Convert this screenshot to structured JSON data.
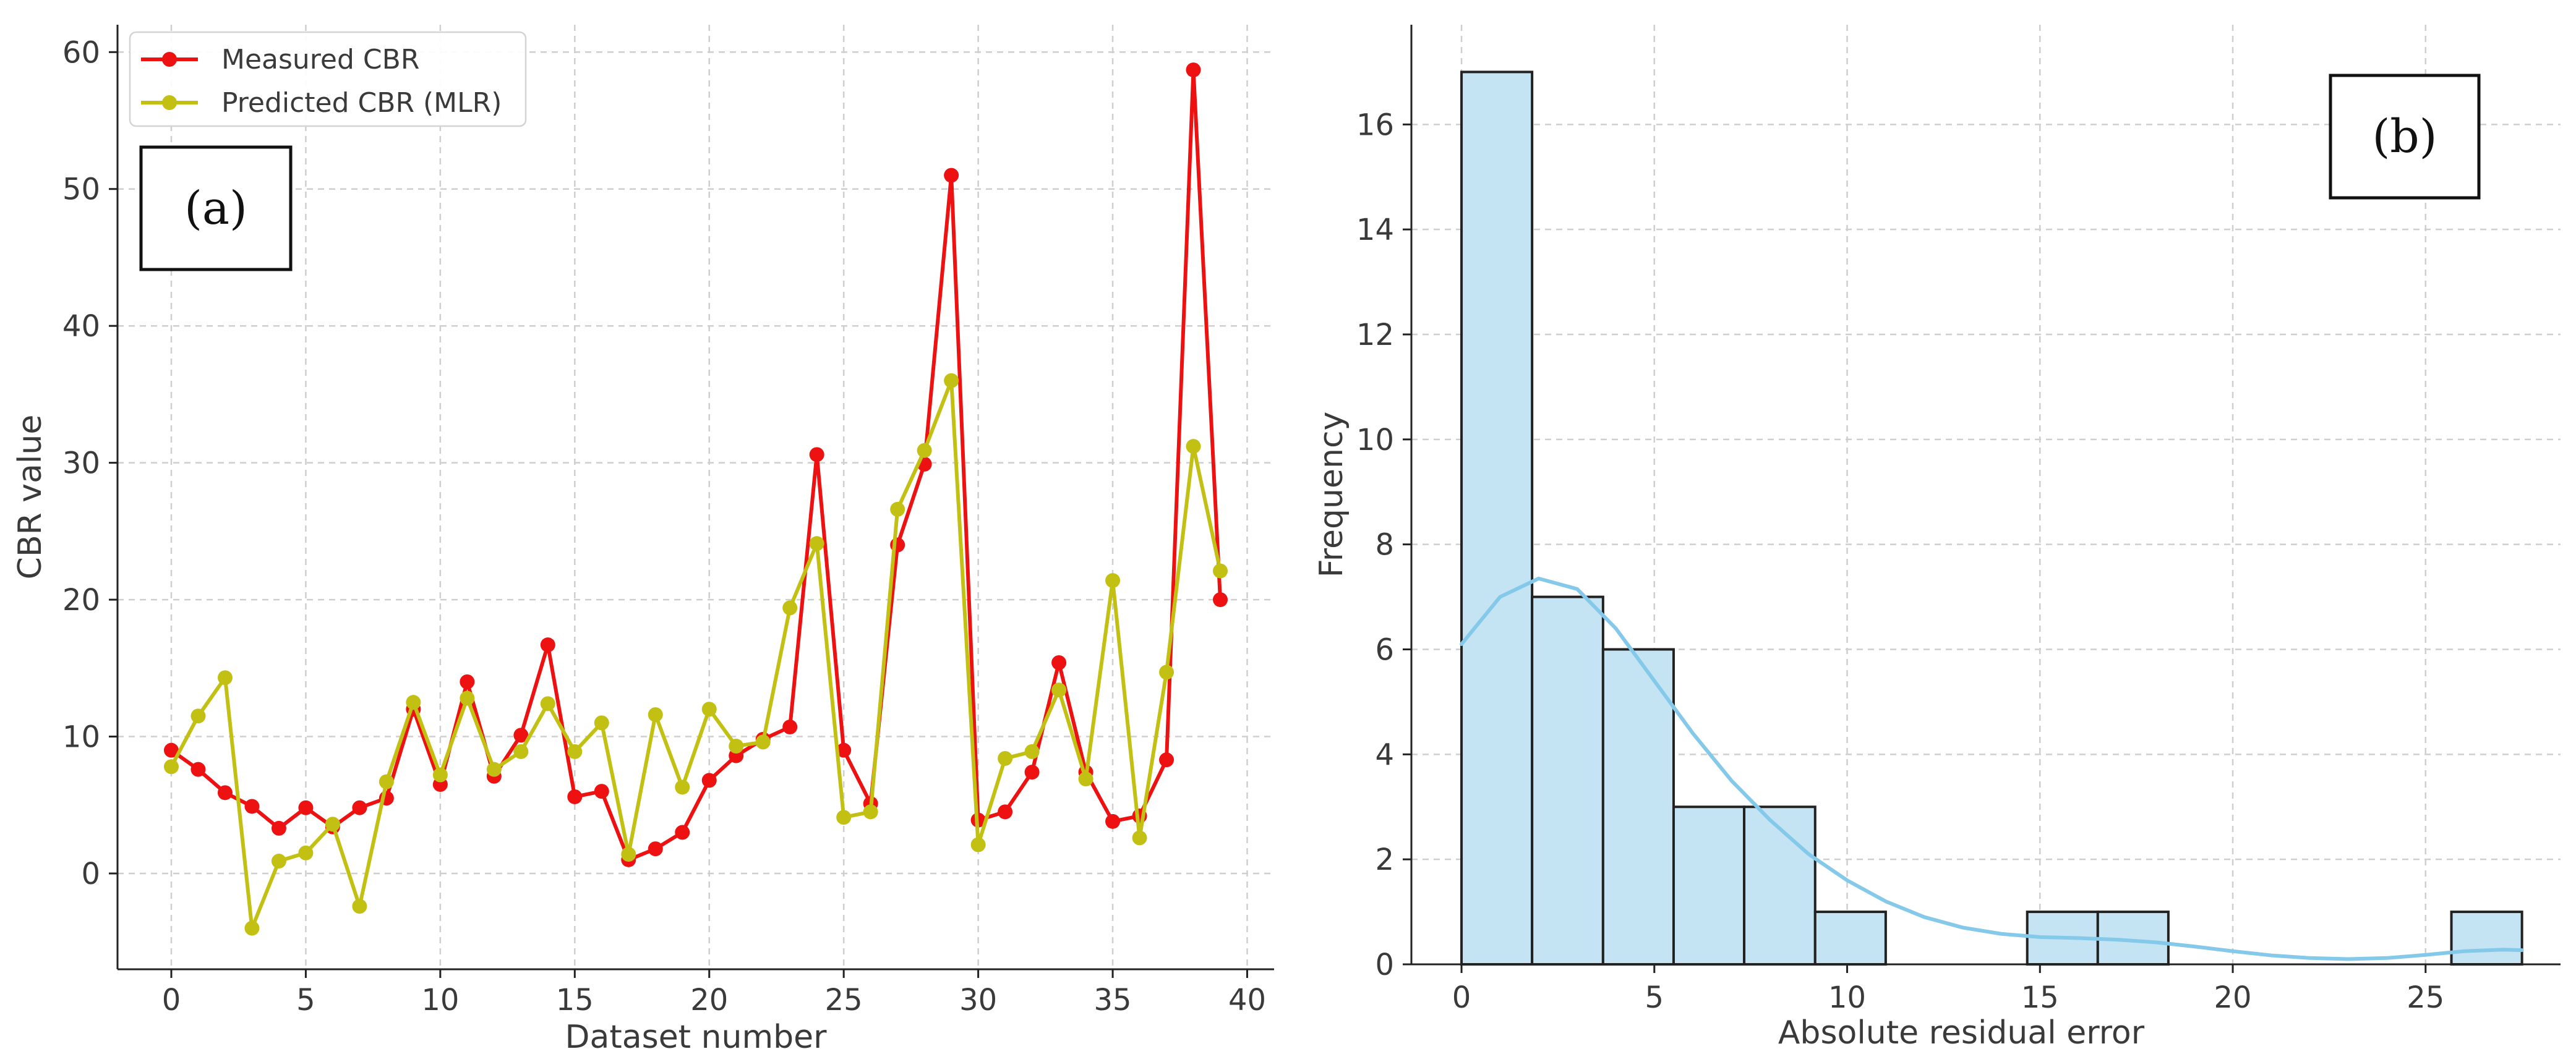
{
  "chart_data": [
    {
      "panel": "(a)",
      "type": "line",
      "xlabel": "Dataset number",
      "ylabel": "CBR value",
      "xlim": [
        -2,
        41
      ],
      "ylim": [
        -7,
        62
      ],
      "xticks": [
        "0",
        "5",
        "10",
        "15",
        "20",
        "25",
        "30",
        "35",
        "40"
      ],
      "yticks": [
        "0",
        "10",
        "20",
        "30",
        "40",
        "50",
        "60"
      ],
      "grid": true,
      "legend_position": "top-left",
      "x": [
        0,
        1,
        2,
        3,
        4,
        5,
        6,
        7,
        8,
        9,
        10,
        11,
        12,
        13,
        14,
        15,
        16,
        17,
        18,
        19,
        20,
        21,
        22,
        23,
        24,
        25,
        26,
        27,
        28,
        29,
        30,
        31,
        32,
        33,
        34,
        35,
        36,
        37,
        38,
        39
      ],
      "series": [
        {
          "name": "Measured CBR",
          "color": "#ee1111",
          "values": [
            9.0,
            7.6,
            5.9,
            4.9,
            3.3,
            4.8,
            3.4,
            4.8,
            5.5,
            12.0,
            6.5,
            14.0,
            7.1,
            10.1,
            16.7,
            5.6,
            6.0,
            1.0,
            1.8,
            3.0,
            6.8,
            8.6,
            9.8,
            10.7,
            30.6,
            9.0,
            5.1,
            24.0,
            29.9,
            51.0,
            3.9,
            4.5,
            7.4,
            15.4,
            7.4,
            3.8,
            4.2,
            8.3,
            58.7,
            20.0
          ]
        },
        {
          "name": "Predicted CBR (MLR)",
          "color": "#c2c012",
          "values": [
            7.8,
            11.5,
            14.3,
            -4.0,
            0.9,
            1.5,
            3.6,
            -2.4,
            6.7,
            12.5,
            7.2,
            12.8,
            7.6,
            8.9,
            12.4,
            8.9,
            11.0,
            1.4,
            11.6,
            6.3,
            12.0,
            9.3,
            9.6,
            19.4,
            24.1,
            4.1,
            4.5,
            26.6,
            30.9,
            36.0,
            2.1,
            8.4,
            8.9,
            13.4,
            6.9,
            21.4,
            2.6,
            14.7,
            31.2,
            22.1
          ]
        }
      ]
    },
    {
      "panel": "(b)",
      "type": "bar",
      "subtype": "histogram-with-kde",
      "xlabel": "Absolute residual error",
      "ylabel": "Frequency",
      "xlim": [
        -1.3,
        28.5
      ],
      "ylim": [
        0,
        17.9
      ],
      "xticks": [
        "0",
        "5",
        "10",
        "15",
        "20",
        "25"
      ],
      "yticks": [
        "0",
        "2",
        "4",
        "6",
        "8",
        "10",
        "12",
        "14",
        "16"
      ],
      "grid": true,
      "bar_color": "#c5e4f3",
      "edge_color": "#222222",
      "kde_color": "#85c9ea",
      "bins": [
        {
          "start": 0.0,
          "end": 1.83,
          "count": 17
        },
        {
          "start": 1.83,
          "end": 3.67,
          "count": 7
        },
        {
          "start": 3.67,
          "end": 5.5,
          "count": 6
        },
        {
          "start": 5.5,
          "end": 7.33,
          "count": 3
        },
        {
          "start": 7.33,
          "end": 9.17,
          "count": 3
        },
        {
          "start": 9.17,
          "end": 11.0,
          "count": 1
        },
        {
          "start": 11.0,
          "end": 12.83,
          "count": 0
        },
        {
          "start": 12.83,
          "end": 14.67,
          "count": 0
        },
        {
          "start": 14.67,
          "end": 16.5,
          "count": 1
        },
        {
          "start": 16.5,
          "end": 18.33,
          "count": 1
        },
        {
          "start": 18.33,
          "end": 20.17,
          "count": 0
        },
        {
          "start": 20.17,
          "end": 22.0,
          "count": 0
        },
        {
          "start": 22.0,
          "end": 23.83,
          "count": 0
        },
        {
          "start": 23.83,
          "end": 25.67,
          "count": 0
        },
        {
          "start": 25.67,
          "end": 27.5,
          "count": 1
        }
      ],
      "kde": {
        "x": [
          0,
          1,
          2,
          3,
          4,
          5,
          6,
          7,
          8,
          9,
          10,
          11,
          12,
          13,
          14,
          15,
          16,
          17,
          18,
          19,
          20,
          21,
          22,
          23,
          24,
          25,
          26,
          27,
          27.5
        ],
        "y": [
          6.1,
          7.0,
          7.35,
          7.15,
          6.4,
          5.4,
          4.4,
          3.5,
          2.75,
          2.1,
          1.6,
          1.2,
          0.9,
          0.7,
          0.58,
          0.52,
          0.5,
          0.47,
          0.42,
          0.34,
          0.25,
          0.17,
          0.12,
          0.1,
          0.12,
          0.18,
          0.25,
          0.28,
          0.27
        ]
      }
    }
  ]
}
